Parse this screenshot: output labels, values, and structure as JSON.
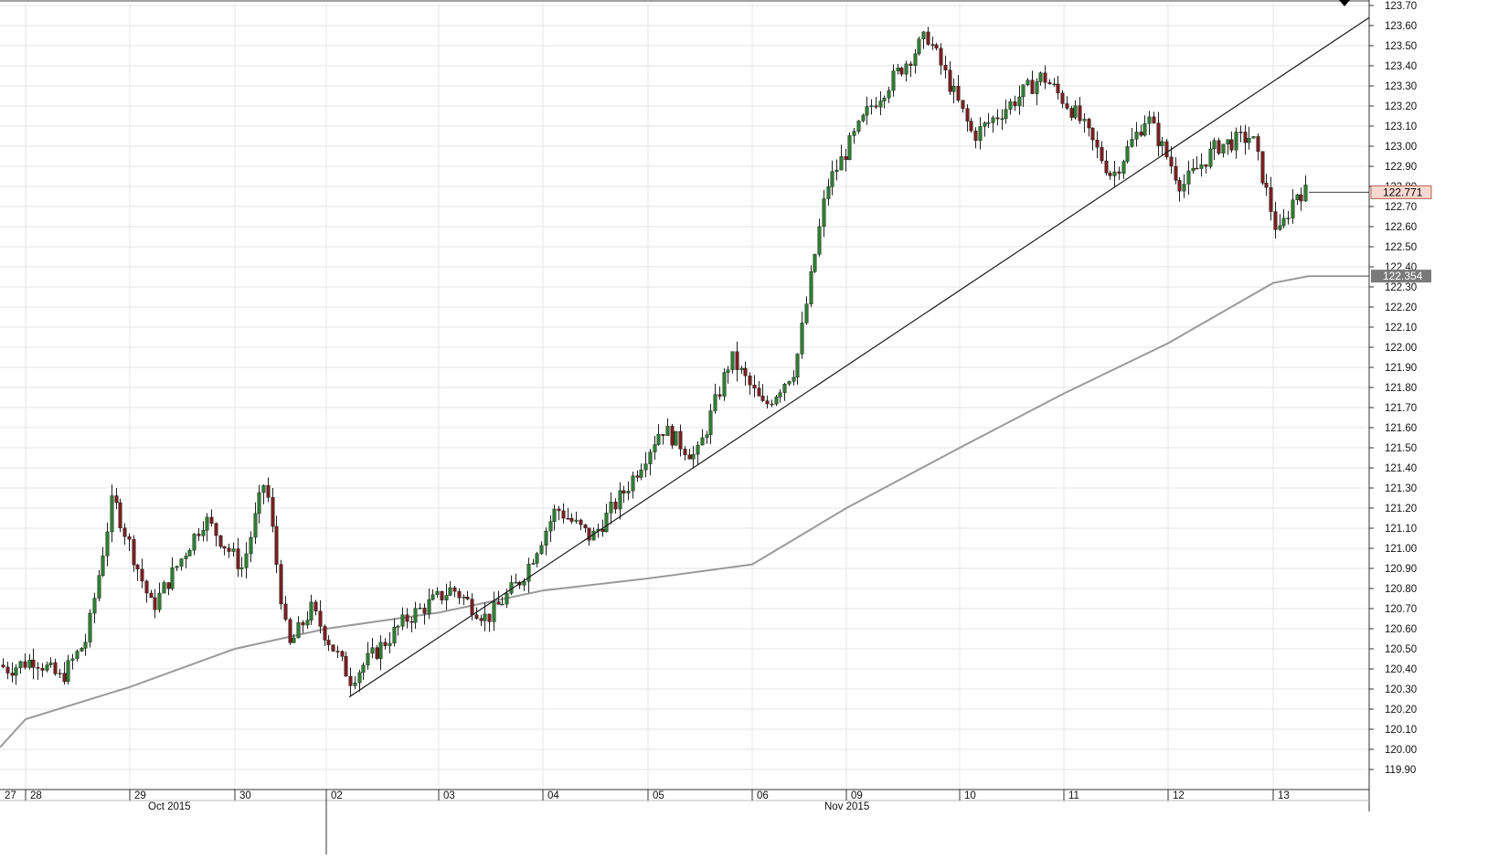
{
  "colors": {
    "background": "#ffffff",
    "grid": "#e6e6e6",
    "bull": "#2e7d32",
    "bear": "#7a1f1f",
    "wick": "#222222",
    "trendline": "#1a1a1a",
    "moving_average": "#9a9a9a",
    "last_price_bg": "#f8d8d0",
    "ma_label_bg": "#7a7a7a"
  },
  "chart_data": {
    "type": "candlestick",
    "title": "",
    "xlabel": "",
    "ylabel": "",
    "ylim": [
      119.8,
      123.7
    ],
    "grid": true,
    "y_ticks": [
      "123.70",
      "123.60",
      "123.50",
      "123.40",
      "123.30",
      "123.20",
      "123.10",
      "123.00",
      "122.90",
      "122.80",
      "122.70",
      "122.60",
      "122.50",
      "122.40",
      "122.30",
      "122.20",
      "122.10",
      "122.00",
      "121.90",
      "121.80",
      "121.70",
      "121.60",
      "121.50",
      "121.40",
      "121.30",
      "121.20",
      "121.10",
      "121.00",
      "120.90",
      "120.80",
      "120.70",
      "120.60",
      "120.50",
      "120.40",
      "120.30",
      "120.20",
      "120.10",
      "120.00",
      "119.90"
    ],
    "x_day_labels": [
      "27",
      "28",
      "29",
      "30",
      "02",
      "03",
      "04",
      "05",
      "06",
      "09",
      "10",
      "11",
      "12",
      "13"
    ],
    "x_month_labels": [
      "Oct 2015",
      "Nov 2015"
    ],
    "last_price": {
      "label": "122.771",
      "value": 122.771
    },
    "moving_average_last": {
      "label": "122.354",
      "value": 122.354
    },
    "trendline": {
      "start": {
        "date": "02",
        "value": 120.26
      },
      "end": {
        "date": "13",
        "value": 123.64
      }
    },
    "moving_average_anchors": [
      {
        "date": "27",
        "value": 120.01
      },
      {
        "date": "28",
        "value": 120.15
      },
      {
        "date": "29",
        "value": 120.31
      },
      {
        "date": "30",
        "value": 120.5
      },
      {
        "date": "02",
        "value": 120.6
      },
      {
        "date": "03",
        "value": 120.68
      },
      {
        "date": "04",
        "value": 120.79
      },
      {
        "date": "05",
        "value": 120.85
      },
      {
        "date": "06",
        "value": 120.92
      },
      {
        "date": "09",
        "value": 121.2
      },
      {
        "date": "10",
        "value": 121.5
      },
      {
        "date": "11",
        "value": 121.77
      },
      {
        "date": "12",
        "value": 122.02
      },
      {
        "date": "13",
        "value": 122.32
      }
    ],
    "price_path_anchors": [
      {
        "date": "27",
        "value": 120.4
      },
      {
        "date": "28",
        "value": 120.45
      },
      {
        "date": "28",
        "value": 120.35
      },
      {
        "date": "28",
        "value": 120.55
      },
      {
        "date": "28",
        "value": 121.25
      },
      {
        "date": "29",
        "value": 120.7
      },
      {
        "date": "29",
        "value": 121.15
      },
      {
        "date": "30",
        "value": 120.9
      },
      {
        "date": "30",
        "value": 121.35
      },
      {
        "date": "30",
        "value": 120.5
      },
      {
        "date": "30",
        "value": 120.7
      },
      {
        "date": "02",
        "value": 120.35
      },
      {
        "date": "02",
        "value": 120.65
      },
      {
        "date": "03",
        "value": 120.8
      },
      {
        "date": "03",
        "value": 120.65
      },
      {
        "date": "03",
        "value": 120.85
      },
      {
        "date": "04",
        "value": 121.2
      },
      {
        "date": "04",
        "value": 121.05
      },
      {
        "date": "04",
        "value": 121.3
      },
      {
        "date": "05",
        "value": 121.6
      },
      {
        "date": "05",
        "value": 121.45
      },
      {
        "date": "05",
        "value": 121.95
      },
      {
        "date": "06",
        "value": 121.7
      },
      {
        "date": "06",
        "value": 121.9
      },
      {
        "date": "06",
        "value": 122.8
      },
      {
        "date": "09",
        "value": 123.2
      },
      {
        "date": "09",
        "value": 123.55
      },
      {
        "date": "10",
        "value": 123.05
      },
      {
        "date": "10",
        "value": 123.2
      },
      {
        "date": "10",
        "value": 123.35
      },
      {
        "date": "11",
        "value": 123.15
      },
      {
        "date": "11",
        "value": 122.85
      },
      {
        "date": "11",
        "value": 123.15
      },
      {
        "date": "12",
        "value": 122.8
      },
      {
        "date": "12",
        "value": 123.0
      },
      {
        "date": "12",
        "value": 123.05
      },
      {
        "date": "13",
        "value": 122.55
      },
      {
        "date": "13",
        "value": 122.771
      }
    ]
  }
}
